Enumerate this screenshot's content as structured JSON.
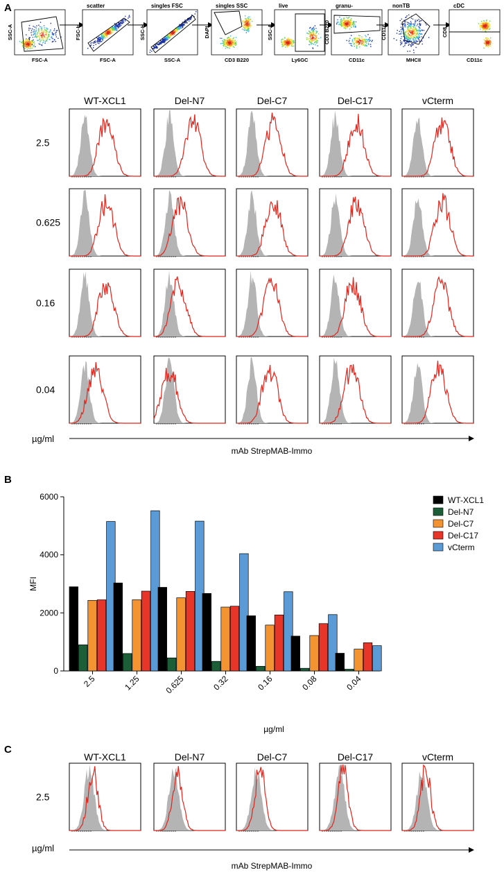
{
  "panels": {
    "a": "A",
    "b": "B",
    "c": "C"
  },
  "gating": {
    "titles": [
      "",
      "scatter",
      "singles FSC",
      "singles SSC",
      "live",
      "granu-",
      "nonTB",
      "cDC"
    ],
    "xlabels": [
      "FSC-A",
      "FSC-A",
      "SSC-A",
      "CD3 B220",
      "Ly6GC",
      "CD11c",
      "MHCII",
      "CD11c"
    ],
    "ylabels": [
      "SSC-A",
      "FSC-H",
      "SSC-H",
      "DAPI",
      "SSC-A",
      "CD3 B220",
      "CD11c",
      "CD8"
    ]
  },
  "panelA": {
    "columns": [
      "WT-XCL1",
      "Del-N7",
      "Del-C7",
      "Del-C17",
      "vCterm"
    ],
    "rows": [
      "2.5",
      "0.625",
      "0.16",
      "0.04"
    ],
    "unit": "µg/ml",
    "antibody": "mAb StrepMAB-Immo"
  },
  "panelC": {
    "columns": [
      "WT-XCL1",
      "Del-N7",
      "Del-C7",
      "Del-C17",
      "vCterm"
    ],
    "rows": [
      "2.5"
    ],
    "unit": "µg/ml",
    "antibody": "mAb StrepMAB-Immo"
  },
  "colors": {
    "red": "#e2231a",
    "gray": "#b4b4b4",
    "wt": "#000000",
    "n7": "#1b5e38",
    "c7": "#f39433",
    "c17": "#e8352a",
    "vc": "#5b9bd5"
  },
  "chart_data": {
    "type": "bar",
    "title": "",
    "xlabel": "µg/ml",
    "ylabel": "MFI",
    "ylim": [
      0,
      6000
    ],
    "yticks": [
      "0",
      "2000",
      "4000",
      "6000"
    ],
    "categories": [
      "2.5",
      "1.25",
      "0.625",
      "0.32",
      "0.16",
      "0.08",
      "0.04"
    ],
    "series": [
      {
        "name": "WT-XCL1",
        "color": "#000000",
        "values": [
          2900,
          3030,
          2880,
          2670,
          1900,
          1200,
          610
        ]
      },
      {
        "name": "Del-N7",
        "color": "#1b5e38",
        "values": [
          900,
          600,
          450,
          330,
          160,
          90,
          60
        ]
      },
      {
        "name": "Del-C7",
        "color": "#f39433",
        "values": [
          2430,
          2450,
          2520,
          2200,
          1580,
          1220,
          750
        ]
      },
      {
        "name": "Del-C17",
        "color": "#e8352a",
        "values": [
          2450,
          2750,
          2740,
          2230,
          1930,
          1630,
          970
        ]
      },
      {
        "name": "vCterm",
        "color": "#5b9bd5",
        "values": [
          5150,
          5520,
          5160,
          4040,
          2730,
          1940,
          870
        ]
      }
    ]
  }
}
